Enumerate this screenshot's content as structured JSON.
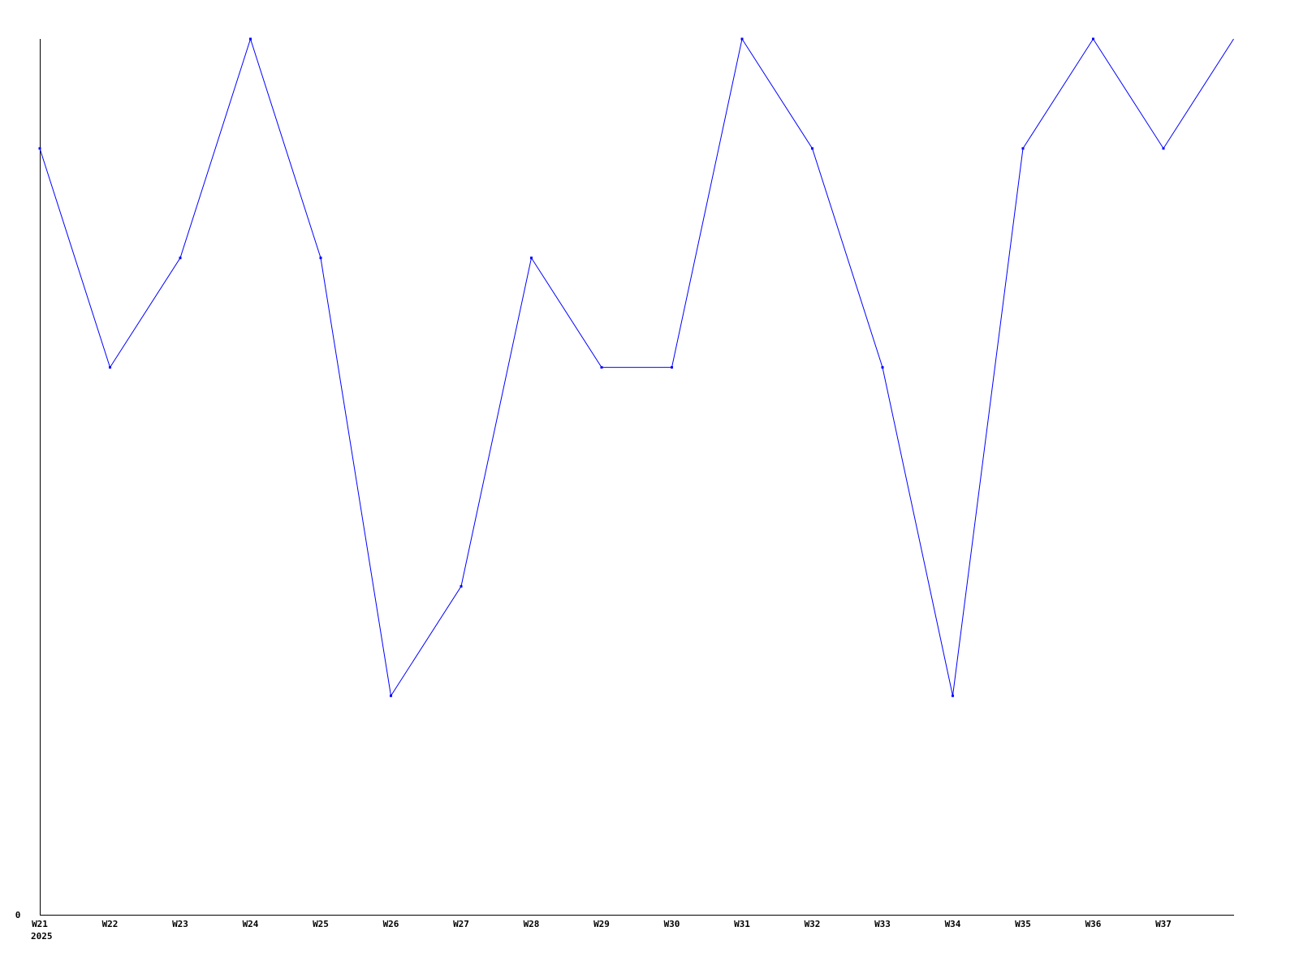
{
  "chart_data": {
    "type": "line",
    "title": "",
    "xlabel": "",
    "ylabel": "",
    "categories": [
      "W21",
      "W22",
      "W23",
      "W24",
      "W25",
      "W26",
      "W27",
      "W28",
      "W29",
      "W30",
      "W31",
      "W32",
      "W33",
      "W34",
      "W35",
      "W36",
      "W37",
      ""
    ],
    "year_label": "2025",
    "y_tick_labels": [
      "0"
    ],
    "ylim": [
      0,
      8
    ],
    "grid": false,
    "series": [
      {
        "values": [
          7,
          5,
          6,
          8,
          6,
          2,
          3,
          6,
          5,
          5,
          8,
          7,
          5,
          2,
          7,
          8,
          7,
          8
        ],
        "color": "#0000ff"
      }
    ]
  }
}
